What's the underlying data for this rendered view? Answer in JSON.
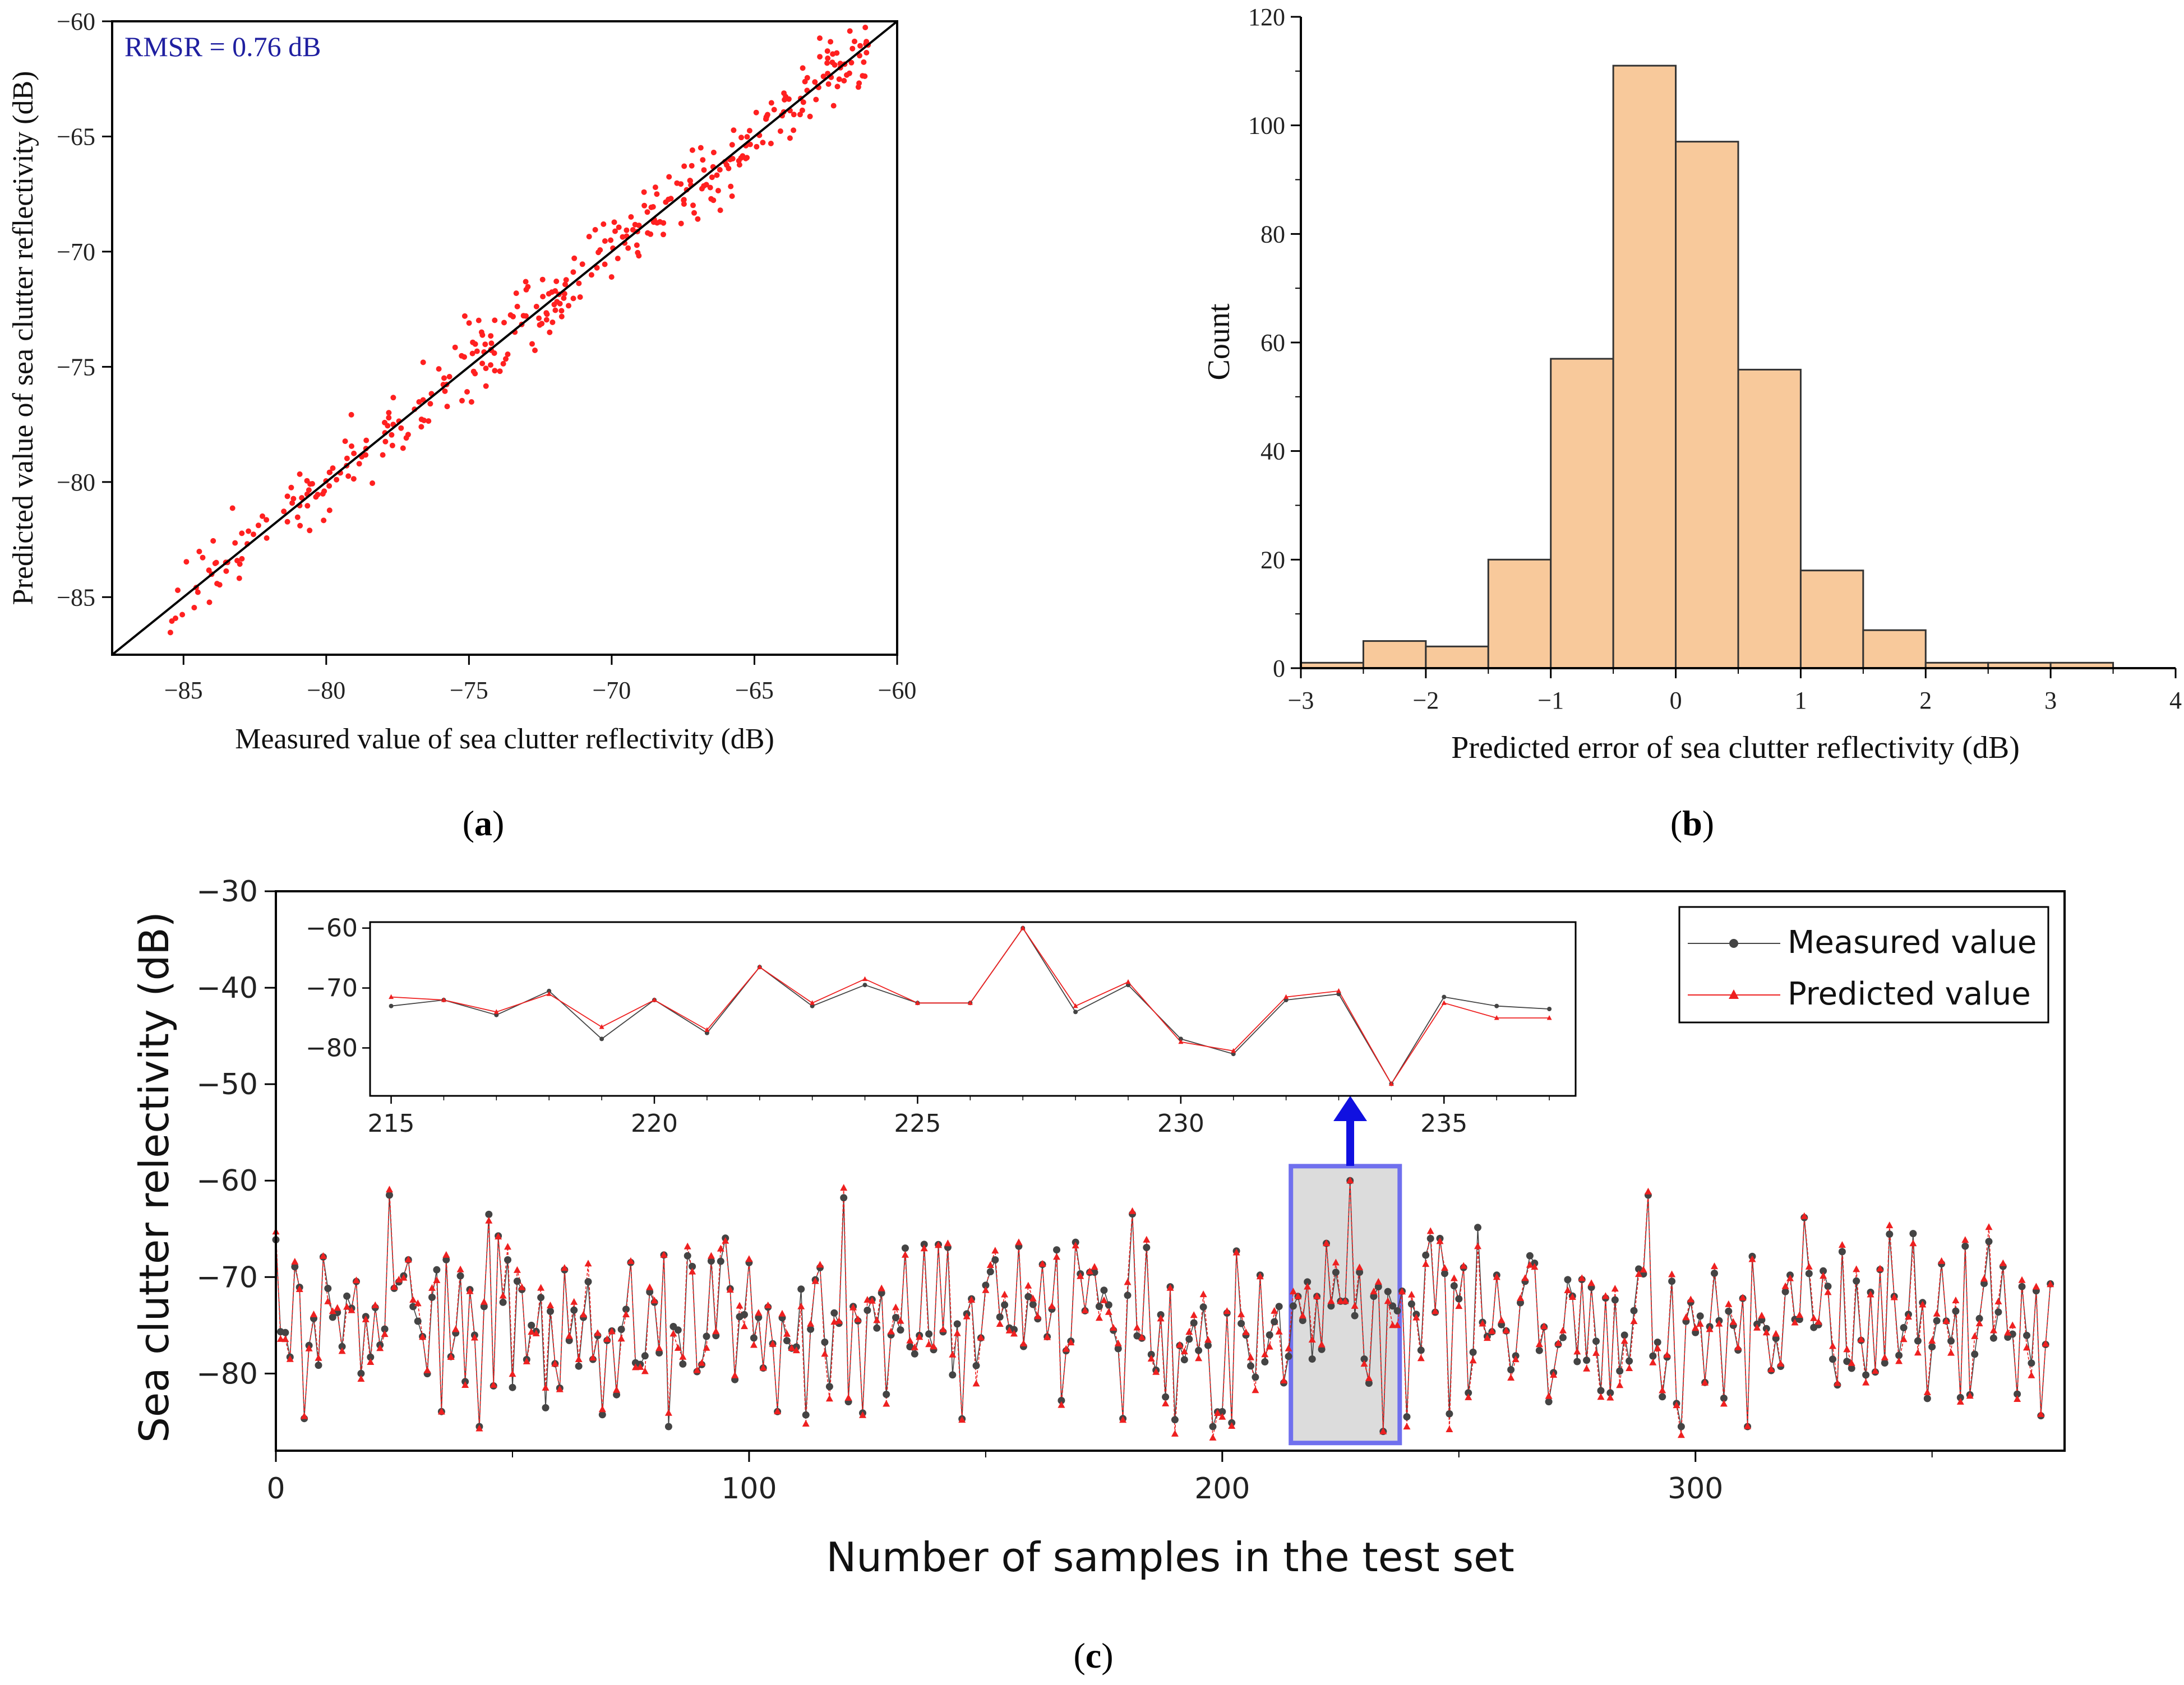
{
  "figure": {
    "background": "#ffffff"
  },
  "chart_data": [
    {
      "id": "a",
      "type": "scatter",
      "panel_label": "a",
      "xlabel": "Measured value of sea clutter reflectivity (dB)",
      "ylabel": "Predicted value of sea clutter reflectivity (dB)",
      "xlim": [
        -87.5,
        -60
      ],
      "ylim": [
        -87.5,
        -60
      ],
      "xticks": [
        -85,
        -80,
        -75,
        -70,
        -65,
        -60
      ],
      "xtick_labels": [
        "−85",
        "−80",
        "−75",
        "−70",
        "−65",
        "−60"
      ],
      "yticks": [
        -85,
        -80,
        -75,
        -70,
        -65,
        -60
      ],
      "ytick_labels": [
        "−85",
        "−80",
        "−75",
        "−70",
        "−65",
        "−60"
      ],
      "annotation": "RMSR = 0.76 dB",
      "annotation_color": "#1f1fa0",
      "point_color": "#ff2020",
      "line_color": "#000000",
      "reference_line": {
        "label": "y = x",
        "from": [
          -87.5,
          -87.5
        ],
        "to": [
          -60,
          -60
        ]
      },
      "points_generated": {
        "count": 372,
        "x_range": [
          -85.5,
          -61
        ],
        "residual_sd_db": 0.76
      }
    },
    {
      "id": "b",
      "type": "bar",
      "panel_label": "b",
      "xlabel": "Predicted error of sea clutter reflectivity (dB)",
      "ylabel": "Count",
      "xlim": [
        -3,
        4
      ],
      "ylim": [
        0,
        120
      ],
      "xticks": [
        -3,
        -2,
        -1,
        0,
        1,
        2,
        3,
        4
      ],
      "xtick_labels": [
        "−3",
        "−2",
        "−1",
        "0",
        "1",
        "2",
        "3",
        "4"
      ],
      "yticks": [
        0,
        20,
        40,
        60,
        80,
        100,
        120
      ],
      "ytick_labels": [
        "0",
        "20",
        "40",
        "60",
        "80",
        "100",
        "120"
      ],
      "bin_edges": [
        -3,
        -2.5,
        -2,
        -1.5,
        -1,
        -0.5,
        0,
        0.5,
        1,
        1.5,
        2,
        2.5,
        3,
        3.5
      ],
      "values": [
        1,
        5,
        4,
        20,
        57,
        111,
        97,
        55,
        18,
        7,
        1,
        1,
        1
      ],
      "bar_color": "#f8c99b",
      "edge_color": "#333333"
    },
    {
      "id": "c",
      "type": "line",
      "panel_label": "c",
      "xlabel": "Number of samples in the test set",
      "ylabel": "Sea clutter relectivity (dB)",
      "xlim": [
        0,
        378
      ],
      "ylim": [
        -88,
        -30
      ],
      "xticks": [
        0,
        100,
        200,
        300
      ],
      "xtick_labels": [
        "0",
        "100",
        "200",
        "300"
      ],
      "yticks": [
        -80,
        -70,
        -60,
        -50,
        -40,
        -30
      ],
      "ytick_labels": [
        "−80",
        "−70",
        "−60",
        "−50",
        "−40",
        "−30"
      ],
      "series": [
        {
          "name": "Measured value",
          "color": "#444444",
          "marker": "circle"
        },
        {
          "name": "Predicted value",
          "color": "#ee2020",
          "marker": "triangle"
        }
      ],
      "legend_position": "top-right",
      "highlight_range": [
        215,
        237
      ],
      "highlight_fill": "#dcdcdc",
      "highlight_edge": "#7070ee",
      "arrow_color": "#1010e0",
      "main_generated": {
        "count": 376,
        "mean_db": -74.5,
        "sd_db": 5.2,
        "min_db": -85.5,
        "max_db": -61.5
      },
      "inset": {
        "xlim": [
          214.6,
          237.5
        ],
        "ylim": [
          -88,
          -59
        ],
        "xticks": [
          215,
          220,
          225,
          230,
          235
        ],
        "xtick_labels": [
          "215",
          "220",
          "225",
          "230",
          "235"
        ],
        "yticks": [
          -80,
          -70,
          -60
        ],
        "ytick_labels": [
          "−80",
          "−70",
          "−60"
        ],
        "x": [
          215,
          216,
          217,
          218,
          219,
          220,
          221,
          222,
          223,
          224,
          225,
          226,
          227,
          228,
          229,
          230,
          231,
          232,
          233,
          234,
          235,
          236,
          237
        ],
        "measured": [
          -73,
          -72,
          -74.5,
          -70.5,
          -78.5,
          -72,
          -77.5,
          -66.5,
          -73,
          -69.5,
          -72.5,
          -72.5,
          -60,
          -74,
          -69.5,
          -78.5,
          -81,
          -72,
          -71,
          -86,
          -71.5,
          -73,
          -73.5
        ],
        "predicted": [
          -71.5,
          -72,
          -74,
          -71,
          -76.5,
          -72,
          -77,
          -66.5,
          -72.5,
          -68.5,
          -72.5,
          -72.5,
          -60,
          -73,
          -69,
          -79,
          -80.5,
          -71.5,
          -70.5,
          -86,
          -72.5,
          -75,
          -75
        ]
      }
    }
  ]
}
